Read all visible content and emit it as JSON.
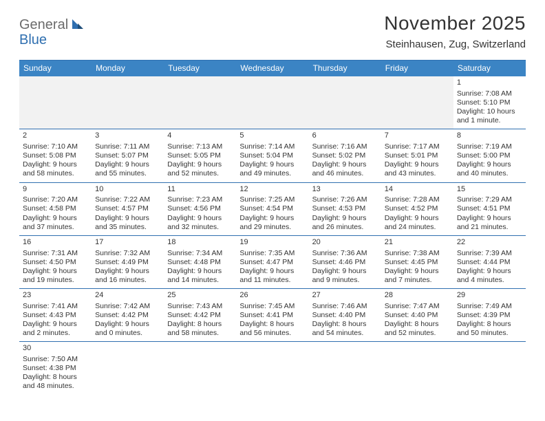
{
  "brand": {
    "part1": "General",
    "part2": "Blue"
  },
  "title": "November 2025",
  "subtitle": "Steinhausen, Zug, Switzerland",
  "colors": {
    "header_bar": "#3b84c4",
    "week_divider": "#2f6fb0",
    "empty_cell": "#f2f2f2",
    "text": "#333333",
    "logo_gray": "#6b6b6b",
    "logo_blue": "#2f6fb0",
    "background": "#ffffff"
  },
  "weekdays": [
    "Sunday",
    "Monday",
    "Tuesday",
    "Wednesday",
    "Thursday",
    "Friday",
    "Saturday"
  ],
  "weeks": [
    [
      null,
      null,
      null,
      null,
      null,
      null,
      {
        "n": "1",
        "sr": "Sunrise: 7:08 AM",
        "ss": "Sunset: 5:10 PM",
        "dl": "Daylight: 10 hours and 1 minute."
      }
    ],
    [
      {
        "n": "2",
        "sr": "Sunrise: 7:10 AM",
        "ss": "Sunset: 5:08 PM",
        "dl": "Daylight: 9 hours and 58 minutes."
      },
      {
        "n": "3",
        "sr": "Sunrise: 7:11 AM",
        "ss": "Sunset: 5:07 PM",
        "dl": "Daylight: 9 hours and 55 minutes."
      },
      {
        "n": "4",
        "sr": "Sunrise: 7:13 AM",
        "ss": "Sunset: 5:05 PM",
        "dl": "Daylight: 9 hours and 52 minutes."
      },
      {
        "n": "5",
        "sr": "Sunrise: 7:14 AM",
        "ss": "Sunset: 5:04 PM",
        "dl": "Daylight: 9 hours and 49 minutes."
      },
      {
        "n": "6",
        "sr": "Sunrise: 7:16 AM",
        "ss": "Sunset: 5:02 PM",
        "dl": "Daylight: 9 hours and 46 minutes."
      },
      {
        "n": "7",
        "sr": "Sunrise: 7:17 AM",
        "ss": "Sunset: 5:01 PM",
        "dl": "Daylight: 9 hours and 43 minutes."
      },
      {
        "n": "8",
        "sr": "Sunrise: 7:19 AM",
        "ss": "Sunset: 5:00 PM",
        "dl": "Daylight: 9 hours and 40 minutes."
      }
    ],
    [
      {
        "n": "9",
        "sr": "Sunrise: 7:20 AM",
        "ss": "Sunset: 4:58 PM",
        "dl": "Daylight: 9 hours and 37 minutes."
      },
      {
        "n": "10",
        "sr": "Sunrise: 7:22 AM",
        "ss": "Sunset: 4:57 PM",
        "dl": "Daylight: 9 hours and 35 minutes."
      },
      {
        "n": "11",
        "sr": "Sunrise: 7:23 AM",
        "ss": "Sunset: 4:56 PM",
        "dl": "Daylight: 9 hours and 32 minutes."
      },
      {
        "n": "12",
        "sr": "Sunrise: 7:25 AM",
        "ss": "Sunset: 4:54 PM",
        "dl": "Daylight: 9 hours and 29 minutes."
      },
      {
        "n": "13",
        "sr": "Sunrise: 7:26 AM",
        "ss": "Sunset: 4:53 PM",
        "dl": "Daylight: 9 hours and 26 minutes."
      },
      {
        "n": "14",
        "sr": "Sunrise: 7:28 AM",
        "ss": "Sunset: 4:52 PM",
        "dl": "Daylight: 9 hours and 24 minutes."
      },
      {
        "n": "15",
        "sr": "Sunrise: 7:29 AM",
        "ss": "Sunset: 4:51 PM",
        "dl": "Daylight: 9 hours and 21 minutes."
      }
    ],
    [
      {
        "n": "16",
        "sr": "Sunrise: 7:31 AM",
        "ss": "Sunset: 4:50 PM",
        "dl": "Daylight: 9 hours and 19 minutes."
      },
      {
        "n": "17",
        "sr": "Sunrise: 7:32 AM",
        "ss": "Sunset: 4:49 PM",
        "dl": "Daylight: 9 hours and 16 minutes."
      },
      {
        "n": "18",
        "sr": "Sunrise: 7:34 AM",
        "ss": "Sunset: 4:48 PM",
        "dl": "Daylight: 9 hours and 14 minutes."
      },
      {
        "n": "19",
        "sr": "Sunrise: 7:35 AM",
        "ss": "Sunset: 4:47 PM",
        "dl": "Daylight: 9 hours and 11 minutes."
      },
      {
        "n": "20",
        "sr": "Sunrise: 7:36 AM",
        "ss": "Sunset: 4:46 PM",
        "dl": "Daylight: 9 hours and 9 minutes."
      },
      {
        "n": "21",
        "sr": "Sunrise: 7:38 AM",
        "ss": "Sunset: 4:45 PM",
        "dl": "Daylight: 9 hours and 7 minutes."
      },
      {
        "n": "22",
        "sr": "Sunrise: 7:39 AM",
        "ss": "Sunset: 4:44 PM",
        "dl": "Daylight: 9 hours and 4 minutes."
      }
    ],
    [
      {
        "n": "23",
        "sr": "Sunrise: 7:41 AM",
        "ss": "Sunset: 4:43 PM",
        "dl": "Daylight: 9 hours and 2 minutes."
      },
      {
        "n": "24",
        "sr": "Sunrise: 7:42 AM",
        "ss": "Sunset: 4:42 PM",
        "dl": "Daylight: 9 hours and 0 minutes."
      },
      {
        "n": "25",
        "sr": "Sunrise: 7:43 AM",
        "ss": "Sunset: 4:42 PM",
        "dl": "Daylight: 8 hours and 58 minutes."
      },
      {
        "n": "26",
        "sr": "Sunrise: 7:45 AM",
        "ss": "Sunset: 4:41 PM",
        "dl": "Daylight: 8 hours and 56 minutes."
      },
      {
        "n": "27",
        "sr": "Sunrise: 7:46 AM",
        "ss": "Sunset: 4:40 PM",
        "dl": "Daylight: 8 hours and 54 minutes."
      },
      {
        "n": "28",
        "sr": "Sunrise: 7:47 AM",
        "ss": "Sunset: 4:40 PM",
        "dl": "Daylight: 8 hours and 52 minutes."
      },
      {
        "n": "29",
        "sr": "Sunrise: 7:49 AM",
        "ss": "Sunset: 4:39 PM",
        "dl": "Daylight: 8 hours and 50 minutes."
      }
    ],
    [
      {
        "n": "30",
        "sr": "Sunrise: 7:50 AM",
        "ss": "Sunset: 4:38 PM",
        "dl": "Daylight: 8 hours and 48 minutes."
      },
      null,
      null,
      null,
      null,
      null,
      null
    ]
  ]
}
